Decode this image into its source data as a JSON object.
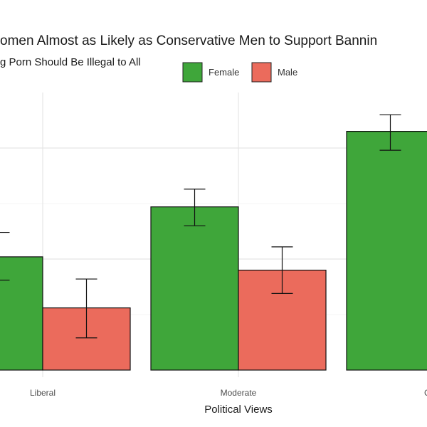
{
  "chart_data": {
    "type": "bar",
    "title": "omen Almost as Likely as Conservative Men to Support Bannin",
    "subtitle": "g Porn Should Be Illegal to All",
    "xlabel": "Political Views",
    "ylabel": "",
    "categories": [
      "Liberal",
      "Moderate",
      "Cons"
    ],
    "legend": {
      "position": "top",
      "entries": [
        "Female",
        "Male"
      ]
    },
    "grid": true,
    "ylim": [
      0,
      0.25
    ],
    "series": [
      {
        "name": "Female",
        "color": "#3fa63a",
        "values": [
          0.102,
          0.147,
          0.215
        ],
        "error_low": [
          0.081,
          0.13,
          0.198
        ],
        "error_high": [
          0.124,
          0.163,
          0.23
        ]
      },
      {
        "name": "Male",
        "color": "#eb6b5c",
        "values": [
          0.056,
          0.09,
          null
        ],
        "error_low": [
          0.029,
          0.069,
          null
        ],
        "error_high": [
          0.082,
          0.111,
          null
        ]
      }
    ]
  }
}
